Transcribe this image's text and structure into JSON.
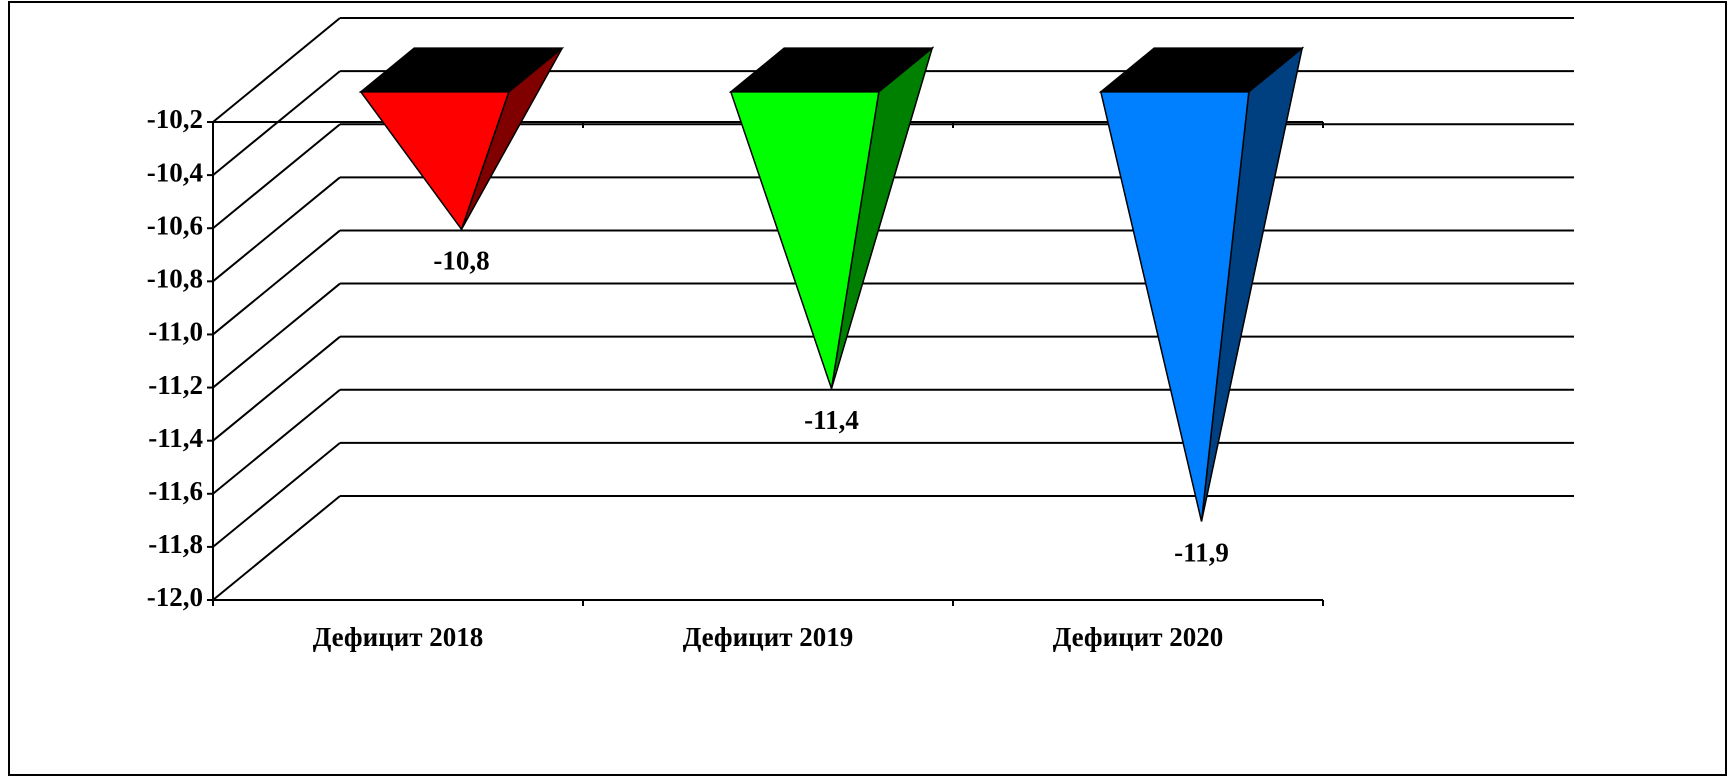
{
  "chart_data": {
    "type": "bar",
    "shape": "pyramid",
    "categories": [
      "Дефицит 2018",
      "Дефицит 2019",
      "Дефицит 2020"
    ],
    "values": [
      -10.8,
      -11.4,
      -11.9
    ],
    "value_labels": [
      "-10,8",
      "-11,4",
      "-11,9"
    ],
    "colors": [
      "#ff0000",
      "#00ff00",
      "#0080ff"
    ],
    "side_colors": [
      "#800000",
      "#008000",
      "#004080"
    ],
    "ylim": [
      -12.0,
      -10.2
    ],
    "yticks": [
      {
        "value": -12.0,
        "label": "-12,0"
      },
      {
        "value": -11.8,
        "label": "-11,8"
      },
      {
        "value": -11.6,
        "label": "-11,6"
      },
      {
        "value": -11.4,
        "label": "-11,4"
      },
      {
        "value": -11.2,
        "label": "-11,2"
      },
      {
        "value": -11.0,
        "label": "-11,0"
      },
      {
        "value": -10.8,
        "label": "-10,8"
      },
      {
        "value": -10.6,
        "label": "-10,6"
      },
      {
        "value": -10.4,
        "label": "-10,4"
      },
      {
        "value": -10.2,
        "label": "-10,2"
      }
    ],
    "grid": true
  }
}
